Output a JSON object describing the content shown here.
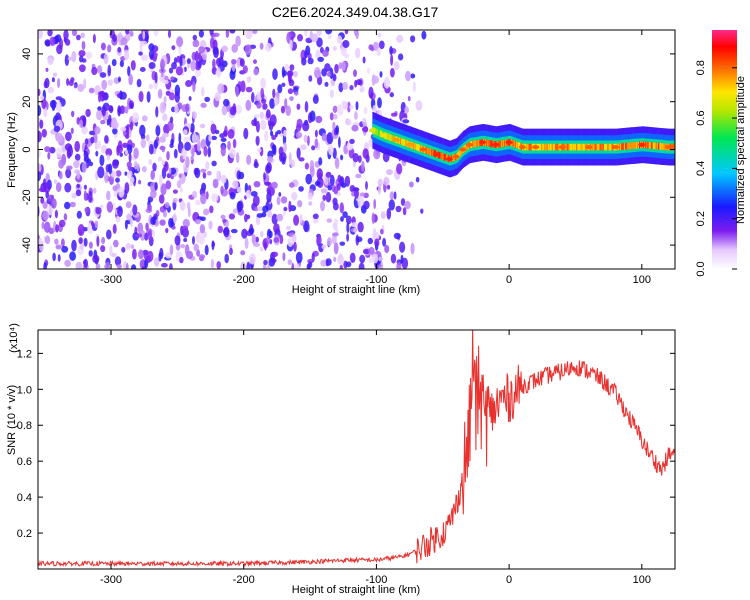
{
  "title": "C2E6.2024.349.04.38.G17",
  "chart_data": [
    {
      "type": "heatmap",
      "xlabel": "Height of straight line (km)",
      "ylabel": "Frequency (Hz)",
      "xlim": [
        -355,
        125
      ],
      "ylim": [
        -50,
        50
      ],
      "xticks": [
        -300,
        -200,
        -100,
        0,
        100
      ],
      "yticks": [
        -40,
        -20,
        0,
        20,
        40
      ],
      "colorbar": {
        "label": "Normalized spectral amplitude",
        "range": [
          0.0,
          0.95
        ],
        "ticks": [
          0.0,
          0.2,
          0.4,
          0.6,
          0.8
        ],
        "colormap": "rainbow (white-violet-blue-cyan-green-yellow-red-pink)"
      },
      "signal_trace": {
        "x": [
          -103,
          -95,
          -85,
          -75,
          -65,
          -55,
          -45,
          -40,
          -35,
          -30,
          -20,
          -10,
          0,
          10,
          20,
          40,
          60,
          80,
          100,
          120
        ],
        "frequency": [
          8,
          6,
          4,
          2,
          0,
          -2,
          -4,
          -3,
          0,
          2,
          3,
          2,
          3,
          1,
          1,
          1,
          1,
          1,
          2,
          1
        ],
        "peak_amplitude": [
          0.7,
          0.75,
          0.8,
          0.8,
          0.85,
          0.9,
          0.9,
          0.85,
          0.85,
          0.85,
          0.9,
          0.9,
          0.9,
          0.85,
          0.85,
          0.85,
          0.85,
          0.85,
          0.9,
          0.85
        ]
      },
      "noise_region": {
        "x_range": [
          -355,
          -60
        ],
        "amplitude_range": [
          0.05,
          0.25
        ]
      },
      "grid": false
    },
    {
      "type": "line",
      "xlabel": "Height of straight line (km)",
      "ylabel": "SNR (10 * v/v)",
      "scale_label": "(x10⁴)",
      "xlim": [
        -355,
        125
      ],
      "ylim": [
        0,
        1.33
      ],
      "xticks": [
        -300,
        -200,
        -100,
        0,
        100
      ],
      "yticks": [
        0.2,
        0.4,
        0.6,
        0.8,
        1.0,
        1.2
      ],
      "series": [
        {
          "color": "#e8312e",
          "x": [
            -355,
            -300,
            -200,
            -150,
            -120,
            -100,
            -80,
            -70,
            -60,
            -50,
            -45,
            -40,
            -35,
            -30,
            -27,
            -25,
            -22,
            -20,
            -15,
            -10,
            -5,
            0,
            10,
            20,
            30,
            40,
            50,
            60,
            70,
            80,
            90,
            100,
            105,
            110,
            115,
            120,
            125
          ],
          "y": [
            0.03,
            0.03,
            0.03,
            0.04,
            0.05,
            0.05,
            0.07,
            0.1,
            0.15,
            0.2,
            0.25,
            0.35,
            0.5,
            0.75,
            1.2,
            0.9,
            1.0,
            0.85,
            0.85,
            0.9,
            0.95,
            0.95,
            1.02,
            1.05,
            1.08,
            1.1,
            1.13,
            1.1,
            1.05,
            0.98,
            0.85,
            0.72,
            0.65,
            0.6,
            0.55,
            0.63,
            0.65
          ]
        }
      ],
      "grid": false
    }
  ]
}
